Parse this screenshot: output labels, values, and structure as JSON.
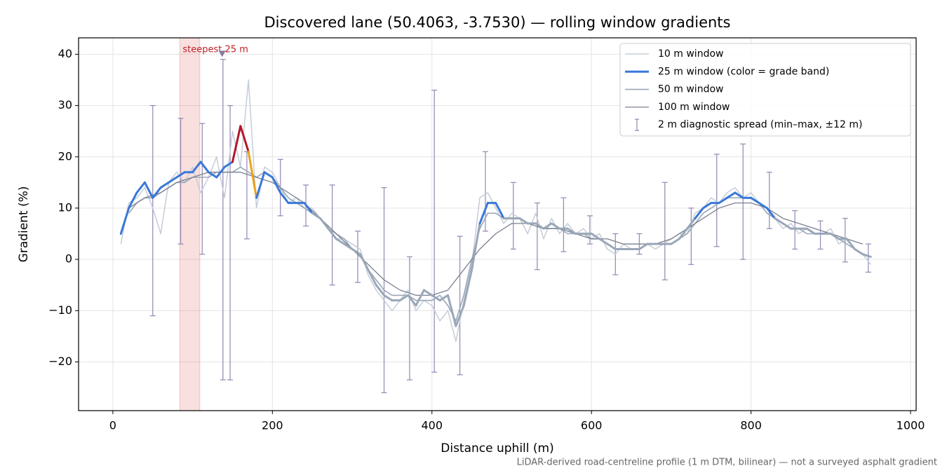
{
  "chart_data": {
    "type": "line",
    "title": "Discovered lane (50.4063, -3.7530) — rolling window gradients",
    "x_label": "Distance uphill (m)",
    "y_label": "Gradient (%)",
    "footnote": "LiDAR-derived road-centreline profile (1 m DTM, bilinear) — not a surveyed asphalt gradient",
    "xlim": [
      -43,
      1007
    ],
    "ylim": [
      -29.5,
      43.2
    ],
    "xticks": [
      0,
      200,
      400,
      600,
      800,
      1000
    ],
    "yticks": [
      {
        "value": -20,
        "label": "−20"
      },
      {
        "value": -10,
        "label": "−10"
      },
      0,
      10,
      20,
      30,
      40
    ],
    "grid": true,
    "legend": "upper right",
    "series": [
      {
        "name": "10 m window",
        "color": "#c5cdd8",
        "x": [
          10,
          20,
          30,
          40,
          50,
          60,
          70,
          80,
          90,
          100,
          110,
          120,
          130,
          140,
          150,
          160,
          170,
          180,
          190,
          200,
          210,
          220,
          230,
          240,
          250,
          260,
          270,
          280,
          290,
          300,
          310,
          320,
          330,
          340,
          350,
          360,
          370,
          380,
          390,
          400,
          410,
          420,
          430,
          440,
          450,
          460,
          470,
          480,
          490,
          500,
          510,
          520,
          530,
          540,
          550,
          560,
          570,
          580,
          590,
          600,
          610,
          620,
          630,
          640,
          650,
          660,
          670,
          680,
          690,
          700,
          710,
          720,
          730,
          740,
          750,
          760,
          770,
          780,
          790,
          800,
          810,
          820,
          830,
          840,
          850,
          860,
          870,
          880,
          890,
          900,
          910,
          920,
          930,
          940,
          950
        ],
        "values": [
          3,
          11,
          12,
          14,
          10,
          5,
          15,
          17,
          15,
          18,
          13,
          16,
          20,
          12,
          25,
          18,
          35,
          10,
          18,
          17,
          14,
          11,
          12,
          10,
          10,
          8,
          6,
          4,
          4,
          3,
          2,
          -3,
          -6,
          -8,
          -10,
          -8,
          -6,
          -10,
          -8,
          -9,
          -12,
          -10,
          -16,
          -8,
          -1,
          12,
          13,
          10,
          7,
          9,
          8,
          5,
          9,
          4,
          8,
          5,
          7,
          5,
          6,
          4,
          5,
          2,
          1,
          3,
          2,
          2,
          3,
          2,
          3,
          4,
          5,
          5,
          9,
          10,
          12,
          11,
          13,
          14,
          12,
          13,
          11,
          9,
          8,
          6,
          7,
          5,
          6,
          5,
          5,
          6,
          3,
          4,
          2,
          1,
          -1
        ]
      },
      {
        "name": "25 m window (color = grade band)",
        "color": "#3a78d8",
        "grade_bands": {
          "thresholds": [
            10,
            20,
            25
          ],
          "colors": [
            "#9aa7b8",
            "#3a78d8",
            "#e8a317",
            "#b2182b"
          ]
        },
        "x": [
          10,
          20,
          30,
          40,
          50,
          60,
          70,
          80,
          90,
          100,
          110,
          120,
          130,
          140,
          150,
          160,
          170,
          180,
          190,
          200,
          210,
          220,
          230,
          240,
          250,
          260,
          270,
          280,
          290,
          300,
          310,
          320,
          330,
          340,
          350,
          360,
          370,
          380,
          390,
          400,
          410,
          420,
          430,
          440,
          450,
          460,
          470,
          480,
          490,
          500,
          510,
          520,
          530,
          540,
          550,
          560,
          570,
          580,
          590,
          600,
          610,
          620,
          630,
          640,
          650,
          660,
          670,
          680,
          690,
          700,
          710,
          720,
          730,
          740,
          750,
          760,
          770,
          780,
          790,
          800,
          810,
          820,
          830,
          840,
          850,
          860,
          870,
          880,
          890,
          900,
          910,
          920,
          930,
          940,
          950
        ],
        "values": [
          5,
          10,
          13,
          15,
          12,
          14,
          15,
          16,
          17,
          17,
          19,
          17,
          16,
          18,
          19,
          26,
          21,
          12,
          17,
          16,
          13,
          11,
          11,
          11,
          9,
          8,
          6,
          4,
          3,
          2,
          1,
          -2,
          -5,
          -7,
          -8,
          -8,
          -7,
          -9,
          -6,
          -7,
          -8,
          -7,
          -13,
          -9,
          -2,
          7,
          11,
          11,
          8,
          8,
          8,
          7,
          7,
          6,
          7,
          6,
          6,
          5,
          5,
          5,
          4,
          3,
          2,
          2,
          2,
          2,
          3,
          3,
          3,
          3,
          4,
          6,
          8,
          10,
          11,
          11,
          12,
          13,
          12,
          12,
          11,
          10,
          8,
          7,
          6,
          6,
          6,
          5,
          5,
          5,
          4,
          4,
          2,
          1,
          0.5
        ]
      },
      {
        "name": "50 m window",
        "color": "#9aa7b8",
        "x": [
          20,
          30,
          40,
          50,
          60,
          70,
          80,
          90,
          100,
          110,
          120,
          130,
          140,
          150,
          160,
          170,
          180,
          190,
          200,
          210,
          220,
          230,
          240,
          250,
          260,
          270,
          280,
          290,
          300,
          310,
          320,
          330,
          340,
          350,
          360,
          370,
          380,
          390,
          400,
          410,
          420,
          430,
          440,
          450,
          460,
          470,
          480,
          490,
          500,
          510,
          520,
          530,
          540,
          550,
          560,
          570,
          580,
          590,
          600,
          610,
          620,
          630,
          640,
          650,
          660,
          670,
          680,
          690,
          700,
          710,
          720,
          730,
          740,
          750,
          760,
          770,
          780,
          790,
          800,
          810,
          820,
          830,
          840,
          850,
          860,
          870,
          880,
          890,
          900,
          910,
          920,
          930,
          940,
          950
        ],
        "values": [
          9,
          11,
          12,
          12,
          13,
          14,
          15,
          15,
          16,
          16,
          16,
          17,
          17,
          17,
          18,
          17,
          16,
          17,
          16,
          14,
          12,
          11,
          10,
          9,
          8,
          6,
          5,
          4,
          2,
          1,
          -2,
          -4,
          -6,
          -7,
          -7,
          -7,
          -8,
          -8,
          -8,
          -7,
          -9,
          -12,
          -7,
          0,
          6,
          9,
          9,
          8,
          8,
          8,
          7,
          7,
          6,
          6,
          6,
          5,
          5,
          5,
          4,
          4,
          3,
          2,
          2,
          2,
          2,
          3,
          3,
          3,
          3,
          4,
          5,
          7,
          9,
          10,
          11,
          12,
          12,
          12,
          12,
          11,
          9,
          8,
          7,
          6,
          6,
          5,
          5,
          5,
          5,
          4,
          3,
          2,
          1,
          0.5
        ]
      },
      {
        "name": "100 m window",
        "color": "#7a8090",
        "x": [
          20,
          40,
          60,
          80,
          100,
          120,
          140,
          160,
          180,
          200,
          220,
          240,
          260,
          280,
          300,
          320,
          340,
          360,
          380,
          400,
          420,
          440,
          460,
          480,
          500,
          520,
          540,
          560,
          580,
          600,
          620,
          640,
          660,
          680,
          700,
          720,
          740,
          760,
          780,
          800,
          820,
          840,
          860,
          880,
          900,
          920,
          940
        ],
        "values": [
          10,
          12,
          13,
          15,
          16,
          17,
          17,
          17,
          16,
          15,
          13,
          11,
          8,
          5,
          2,
          -1,
          -4,
          -6,
          -7,
          -7,
          -6,
          -2,
          2,
          5,
          7,
          7,
          6,
          6,
          5,
          4,
          4,
          3,
          3,
          3,
          4,
          6,
          8,
          10,
          11,
          11,
          10,
          8,
          7,
          6,
          5,
          4,
          3
        ]
      }
    ],
    "spread": {
      "name": "2 m diagnostic spread (min–max, ±12 m)",
      "color": "#9890b8",
      "x": [
        50,
        85,
        112,
        138,
        147,
        168,
        210,
        242,
        275,
        307,
        340,
        372,
        403,
        435,
        467,
        502,
        532,
        565,
        598,
        630,
        660,
        692,
        725,
        757,
        790,
        823,
        855,
        887,
        918,
        947
      ],
      "low": [
        -11,
        3,
        1,
        -23.5,
        -23.5,
        4,
        8.5,
        6.5,
        -5,
        -4.5,
        -26,
        -23.5,
        -22,
        -22.5,
        5.5,
        2,
        -2,
        1.5,
        3,
        -3,
        1,
        -4,
        -1,
        2.5,
        0,
        6,
        2,
        2,
        -0.5,
        -2.5
      ],
      "high": [
        30,
        27.5,
        26.5,
        39,
        30,
        21,
        19.5,
        14.5,
        14.5,
        5.5,
        14,
        0.5,
        33,
        4.5,
        21,
        15,
        11,
        12,
        8.5,
        5,
        5,
        15,
        10,
        20.5,
        22.5,
        17,
        9.5,
        7.5,
        8,
        3
      ]
    },
    "highlight": {
      "label": "steepest 25 m",
      "x": [
        84,
        109
      ],
      "marker": [
        137,
        40
      ],
      "color": "#d9534f",
      "marker_color": "#8878a0"
    }
  }
}
